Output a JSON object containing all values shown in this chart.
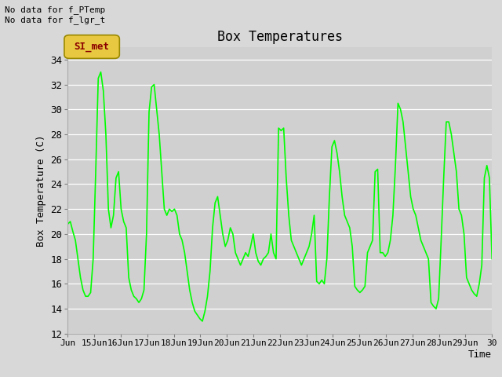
{
  "title": "Box Temperatures",
  "ylabel": "Box Temperature (C)",
  "xlabel": "Time",
  "ylim": [
    12,
    35
  ],
  "xlim": [
    0,
    16
  ],
  "annotation_top": "No data for f_PTemp\nNo data for f_lgr_t",
  "tab_label": "SI_met",
  "bg_color": "#d8d8d8",
  "plot_bg_color": "#d0d0d0",
  "line_color": "#00ff00",
  "x_tick_labels": [
    "Jun",
    "15Jun",
    "16Jun",
    "17Jun",
    "18Jun",
    "19Jun",
    "20Jun",
    "21Jun",
    "22Jun",
    "23Jun",
    "24Jun",
    "25Jun",
    "26Jun",
    "27Jun",
    "28Jun",
    "29Jun",
    "30"
  ],
  "yticks": [
    12,
    14,
    16,
    18,
    20,
    22,
    24,
    26,
    28,
    30,
    32,
    34
  ],
  "tower_air_t": [
    20.8,
    21.0,
    20.2,
    19.5,
    18.0,
    16.5,
    15.5,
    15.0,
    15.0,
    15.3,
    18.0,
    25.0,
    32.5,
    33.0,
    31.5,
    28.0,
    22.0,
    20.5,
    21.5,
    24.5,
    25.0,
    22.0,
    21.0,
    20.5,
    16.5,
    15.5,
    15.0,
    14.8,
    14.5,
    14.8,
    15.5,
    20.0,
    29.8,
    31.8,
    32.0,
    30.0,
    28.0,
    25.0,
    22.0,
    21.5,
    22.0,
    21.8,
    22.0,
    21.5,
    20.0,
    19.5,
    18.5,
    17.0,
    15.5,
    14.5,
    13.8,
    13.5,
    13.2,
    13.0,
    13.8,
    15.0,
    17.0,
    20.5,
    22.5,
    23.0,
    21.5,
    20.0,
    19.0,
    19.5,
    20.5,
    20.0,
    18.5,
    18.0,
    17.5,
    18.0,
    18.5,
    18.2,
    19.0,
    20.0,
    18.5,
    17.8,
    17.5,
    18.0,
    18.2,
    18.5,
    20.0,
    18.5,
    18.0,
    28.5,
    28.3,
    28.5,
    24.5,
    21.5,
    19.5,
    19.0,
    18.5,
    18.0,
    17.5,
    18.0,
    18.5,
    19.0,
    20.0,
    21.5,
    16.2,
    16.0,
    16.3,
    16.0,
    18.0,
    23.0,
    27.0,
    27.5,
    26.5,
    25.0,
    23.0,
    21.5,
    21.0,
    20.5,
    19.0,
    15.8,
    15.5,
    15.3,
    15.5,
    15.8,
    18.5,
    19.0,
    19.5,
    25.0,
    25.2,
    18.5,
    18.5,
    18.2,
    18.5,
    19.5,
    21.5,
    25.5,
    30.5,
    30.0,
    29.0,
    27.0,
    25.0,
    23.0,
    22.0,
    21.5,
    20.5,
    19.5,
    19.0,
    18.5,
    18.0,
    14.5,
    14.2,
    14.0,
    14.8,
    19.5,
    24.5,
    29.0,
    29.0,
    28.0,
    26.5,
    25.0,
    22.0,
    21.5,
    20.0,
    16.5,
    16.0,
    15.5,
    15.2,
    15.0,
    16.0,
    17.5,
    24.5,
    25.5,
    24.5,
    18.0
  ]
}
